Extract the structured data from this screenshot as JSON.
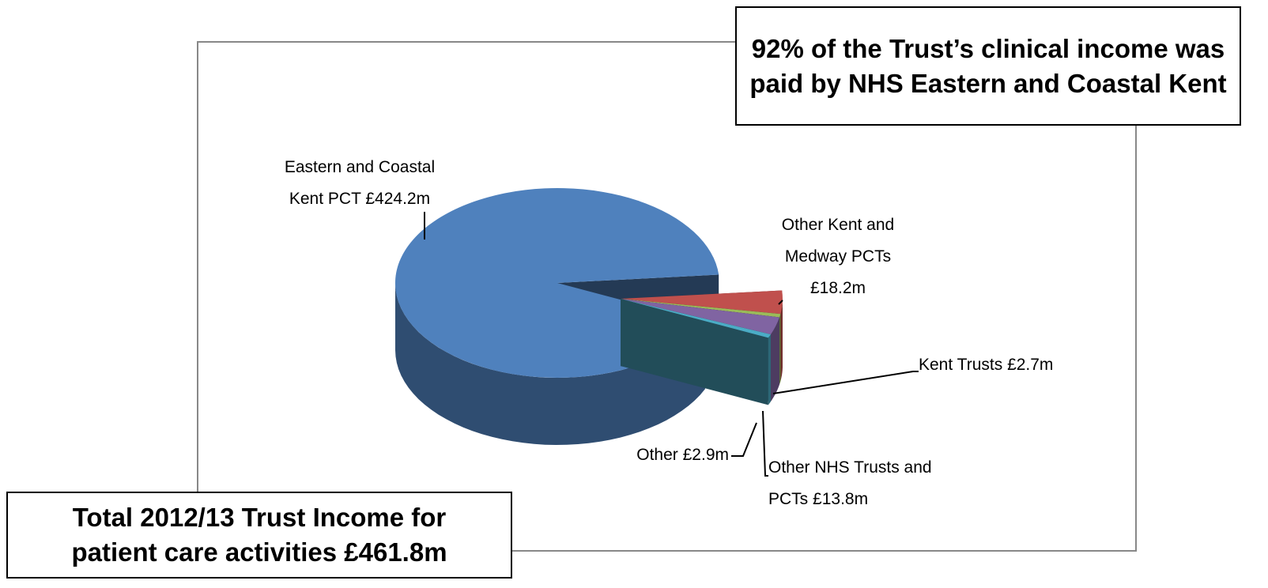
{
  "chart_data": {
    "type": "pie",
    "three_d": true,
    "categories": [
      "Eastern and Coastal Kent PCT",
      "Other Kent and Medway PCTs",
      "Kent Trusts",
      "Other NHS Trusts and PCTs",
      "Other"
    ],
    "values": [
      424.2,
      18.2,
      2.7,
      13.8,
      2.9
    ],
    "value_labels": [
      "£424.2m",
      "£18.2m",
      "£2.7m",
      "£13.8m",
      "£2.9m"
    ],
    "colors": [
      "#4f81bd",
      "#c0504d",
      "#9bbb59",
      "#8064a2",
      "#4bacc6"
    ],
    "annotations": [
      "92% of the Trust’s clinical income was paid by NHS Eastern and Coastal Kent",
      "Total 2012/13 Trust Income for patient care activities £461.8m"
    ]
  }
}
